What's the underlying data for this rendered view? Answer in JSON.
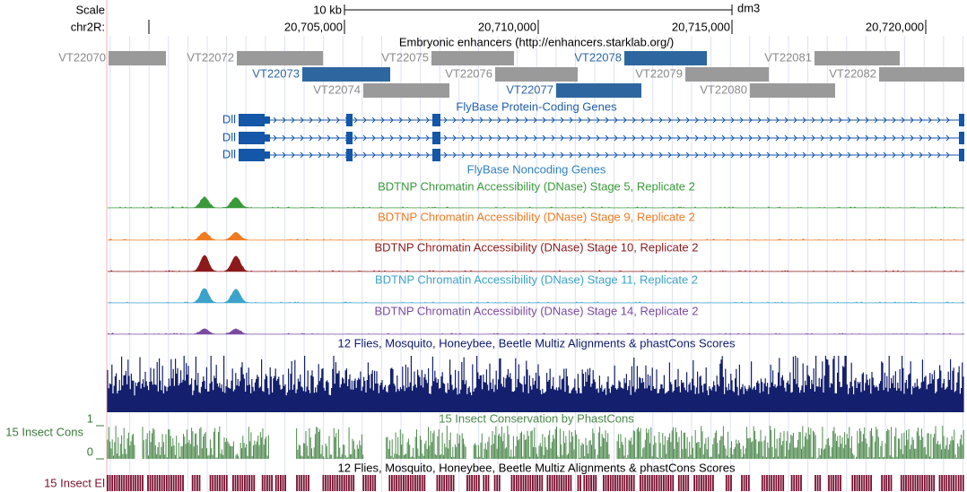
{
  "scale": {
    "label": "Scale",
    "size": "10 kb",
    "assembly": "dm3"
  },
  "position": {
    "chrom": "chr2R:",
    "ticks": [
      "20,705,000",
      "20,710,000",
      "20,715,000",
      "20,720,000"
    ]
  },
  "tracks": {
    "enhancers": {
      "title": "Embryonic enhancers (http://enhancers.starklab.org/)",
      "items": [
        "VT22070",
        "VT22072",
        "VT22075",
        "VT22078",
        "VT22081",
        "VT22073",
        "VT22076",
        "VT22079",
        "VT22082",
        "VT22074",
        "VT22077",
        "VT22080"
      ]
    },
    "protein_coding": {
      "title": "FlyBase Protein-Coding Genes",
      "genes": [
        "Dll",
        "Dll",
        "Dll"
      ]
    },
    "noncoding": {
      "title": "FlyBase Noncoding Genes"
    },
    "dnase": [
      "BDTNP Chromatin Accessibility (DNase) Stage 5, Replicate 2",
      "BDTNP Chromatin Accessibility (DNase) Stage 9, Replicate 2",
      "BDTNP Chromatin Accessibility (DNase) Stage 10, Replicate 2",
      "BDTNP Chromatin Accessibility (DNase) Stage 11, Replicate 2",
      "BDTNP Chromatin Accessibility (DNase) Stage 14, Replicate 2"
    ],
    "multiz": {
      "title": "12 Flies, Mosquito, Honeybee, Beetle Multiz Alignments & phastCons Scores"
    },
    "phastcons": {
      "title": "15 Insect Conservation by PhastCons",
      "label": "15 Insect Cons",
      "max": "1",
      "min": "0"
    },
    "elements": {
      "title": "12 Flies, Mosquito, Honeybee, Beetle Multiz Alignments & phastCons Scores",
      "label": "15 Insect El"
    }
  }
}
